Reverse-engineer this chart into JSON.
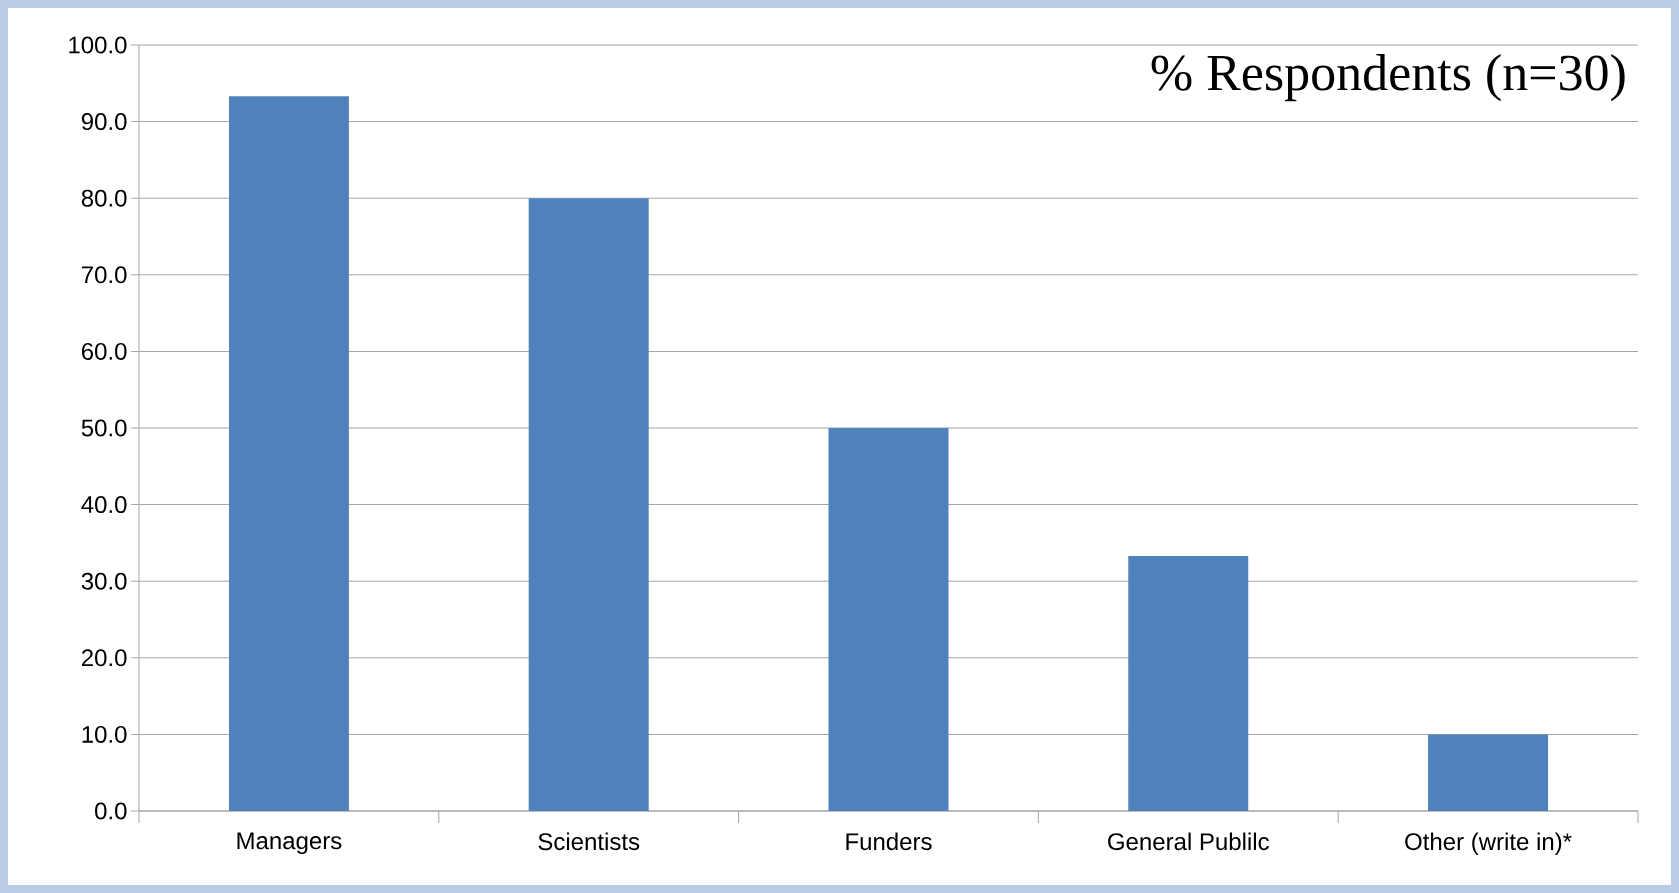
{
  "chart_data": {
    "type": "bar",
    "title": "% Respondents (n=30)",
    "categories": [
      "Managers",
      "Scientists",
      "Funders",
      "General Publilc",
      "Other (write in)*"
    ],
    "values": [
      93.3,
      80.0,
      50.0,
      33.3,
      10.0
    ],
    "color": "#4f81bd",
    "ylim": [
      0,
      100
    ],
    "yticks": [
      {
        "value": 0,
        "label": "0.0"
      },
      {
        "value": 10,
        "label": "10.0"
      },
      {
        "value": 20,
        "label": "20.0"
      },
      {
        "value": 30,
        "label": "30.0"
      },
      {
        "value": 40,
        "label": "40.0"
      },
      {
        "value": 50,
        "label": "50.0"
      },
      {
        "value": 60,
        "label": "60.0"
      },
      {
        "value": 70,
        "label": "70.0"
      },
      {
        "value": 80,
        "label": "80.0"
      },
      {
        "value": 90,
        "label": "90.0"
      },
      {
        "value": 100,
        "label": "100.0"
      }
    ],
    "grid": "y"
  }
}
